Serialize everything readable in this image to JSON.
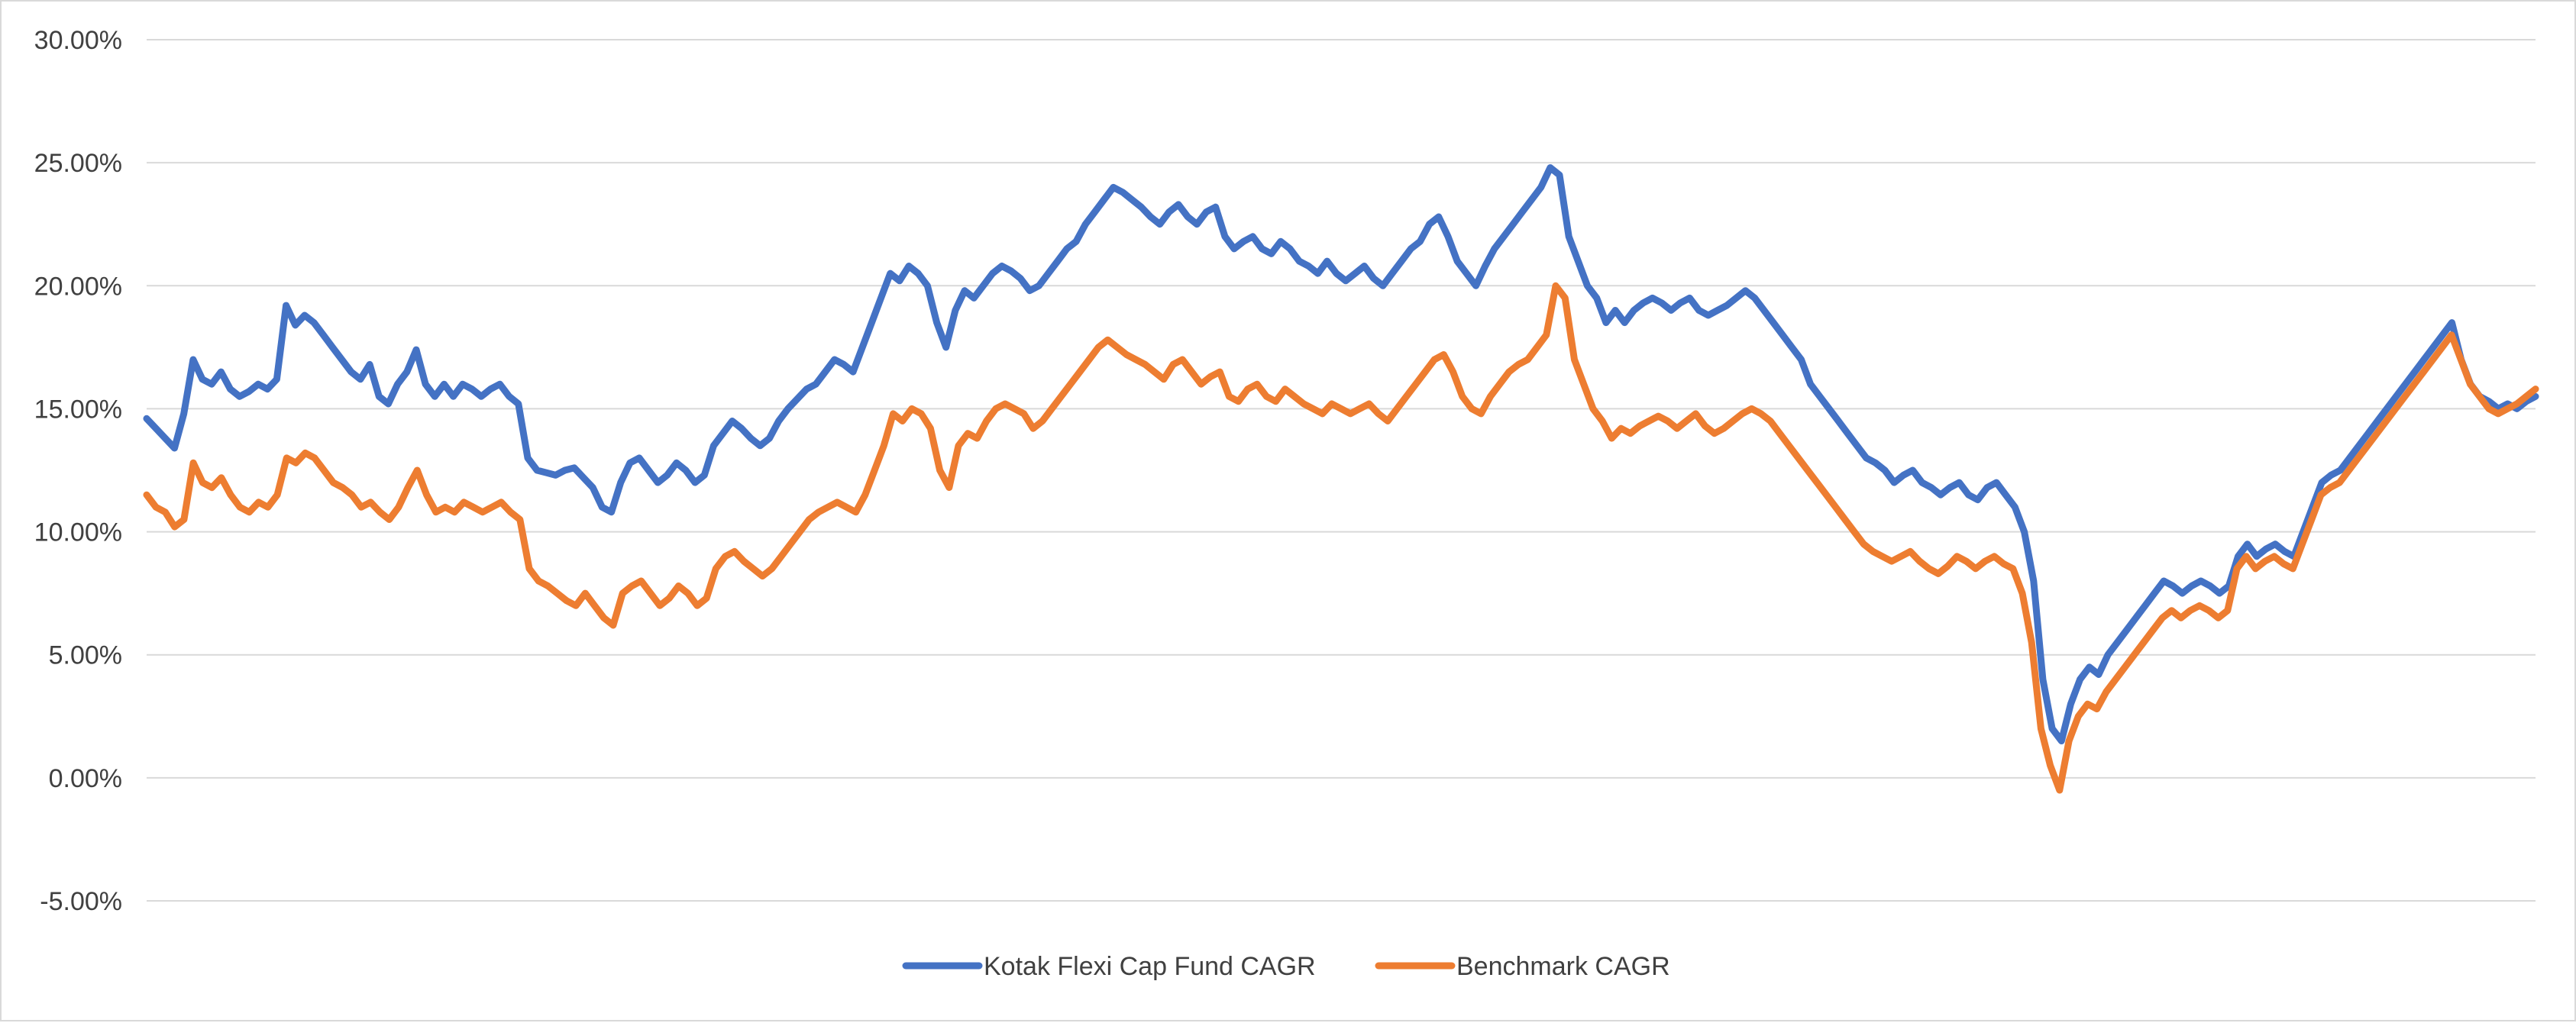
{
  "chart_data": {
    "type": "line",
    "ylim": [
      -5,
      30
    ],
    "y_ticks": [
      30,
      25,
      20,
      15,
      10,
      5,
      0,
      -5
    ],
    "y_tick_labels": [
      "30.00%",
      "25.00%",
      "20.00%",
      "15.00%",
      "10.00%",
      "5.00%",
      "0.00%",
      "-5.00%"
    ],
    "grid": "horizontal",
    "legend_position": "bottom",
    "x_axis_labels": "none",
    "series": [
      {
        "name": "Kotak Flexi Cap Fund CAGR",
        "color": "#4472C4",
        "values": [
          14.6,
          14.2,
          13.8,
          13.4,
          14.8,
          17.0,
          16.2,
          16.0,
          16.5,
          15.8,
          15.5,
          15.7,
          16.0,
          15.8,
          16.2,
          19.2,
          18.4,
          18.8,
          18.5,
          18.0,
          17.5,
          17.0,
          16.5,
          16.2,
          16.8,
          15.5,
          15.2,
          16.0,
          16.5,
          17.4,
          16.0,
          15.5,
          16.0,
          15.5,
          16.0,
          15.8,
          15.5,
          15.8,
          16.0,
          15.5,
          15.2,
          13.0,
          12.5,
          12.4,
          12.3,
          12.5,
          12.6,
          12.2,
          11.8,
          11.0,
          10.8,
          12.0,
          12.8,
          13.0,
          12.5,
          12.0,
          12.3,
          12.8,
          12.5,
          12.0,
          12.3,
          13.5,
          14.0,
          14.5,
          14.2,
          13.8,
          13.5,
          13.8,
          14.5,
          15.0,
          15.4,
          15.8,
          16.0,
          16.5,
          17.0,
          16.8,
          16.5,
          17.5,
          18.5,
          19.5,
          20.5,
          20.2,
          20.8,
          20.5,
          20.0,
          18.5,
          17.5,
          19.0,
          19.8,
          19.5,
          20.0,
          20.5,
          20.8,
          20.6,
          20.3,
          19.8,
          20.0,
          20.5,
          21.0,
          21.5,
          21.8,
          22.5,
          23.0,
          23.5,
          24.0,
          23.8,
          23.5,
          23.2,
          22.8,
          22.5,
          23.0,
          23.3,
          22.8,
          22.5,
          23.0,
          23.2,
          22.0,
          21.5,
          21.8,
          22.0,
          21.5,
          21.3,
          21.8,
          21.5,
          21.0,
          20.8,
          20.5,
          21.0,
          20.5,
          20.2,
          20.5,
          20.8,
          20.3,
          20.0,
          20.5,
          21.0,
          21.5,
          21.8,
          22.5,
          22.8,
          22.0,
          21.0,
          20.5,
          20.0,
          20.8,
          21.5,
          22.0,
          22.5,
          23.0,
          23.5,
          24.0,
          24.8,
          24.5,
          22.0,
          21.0,
          20.0,
          19.5,
          18.5,
          19.0,
          18.5,
          19.0,
          19.3,
          19.5,
          19.3,
          19.0,
          19.3,
          19.5,
          19.0,
          18.8,
          19.0,
          19.2,
          19.5,
          19.8,
          19.5,
          19.0,
          18.5,
          18.0,
          17.5,
          17.0,
          16.0,
          15.5,
          15.0,
          14.5,
          14.0,
          13.5,
          13.0,
          12.8,
          12.5,
          12.0,
          12.3,
          12.5,
          12.0,
          11.8,
          11.5,
          11.8,
          12.0,
          11.5,
          11.3,
          11.8,
          12.0,
          11.5,
          11.0,
          10.0,
          8.0,
          4.0,
          2.0,
          1.5,
          3.0,
          4.0,
          4.5,
          4.2,
          5.0,
          5.5,
          6.0,
          6.5,
          7.0,
          7.5,
          8.0,
          7.8,
          7.5,
          7.8,
          8.0,
          7.8,
          7.5,
          7.8,
          9.0,
          9.5,
          9.0,
          9.3,
          9.5,
          9.2,
          9.0,
          10.0,
          11.0,
          12.0,
          12.3,
          12.5,
          13.0,
          13.5,
          14.0,
          14.5,
          15.0,
          15.5,
          16.0,
          16.5,
          17.0,
          17.5,
          18.0,
          18.5,
          17.0,
          16.0,
          15.5,
          15.3,
          15.0,
          15.2,
          15.0,
          15.3,
          15.5
        ]
      },
      {
        "name": "Benchmark CAGR",
        "color": "#ED7D31",
        "values": [
          11.5,
          11.0,
          10.8,
          10.2,
          10.5,
          12.8,
          12.0,
          11.8,
          12.2,
          11.5,
          11.0,
          10.8,
          11.2,
          11.0,
          11.5,
          13.0,
          12.8,
          13.2,
          13.0,
          12.5,
          12.0,
          11.8,
          11.5,
          11.0,
          11.2,
          10.8,
          10.5,
          11.0,
          11.8,
          12.5,
          11.5,
          10.8,
          11.0,
          10.8,
          11.2,
          11.0,
          10.8,
          11.0,
          11.2,
          10.8,
          10.5,
          8.5,
          8.0,
          7.8,
          7.5,
          7.2,
          7.0,
          7.5,
          7.0,
          6.5,
          6.2,
          7.5,
          7.8,
          8.0,
          7.5,
          7.0,
          7.3,
          7.8,
          7.5,
          7.0,
          7.3,
          8.5,
          9.0,
          9.2,
          8.8,
          8.5,
          8.2,
          8.5,
          9.0,
          9.5,
          10.0,
          10.5,
          10.8,
          11.0,
          11.2,
          11.0,
          10.8,
          11.5,
          12.5,
          13.5,
          14.8,
          14.5,
          15.0,
          14.8,
          14.2,
          12.5,
          11.8,
          13.5,
          14.0,
          13.8,
          14.5,
          15.0,
          15.2,
          15.0,
          14.8,
          14.2,
          14.5,
          15.0,
          15.5,
          16.0,
          16.5,
          17.0,
          17.5,
          17.8,
          17.5,
          17.2,
          17.0,
          16.8,
          16.5,
          16.2,
          16.8,
          17.0,
          16.5,
          16.0,
          16.3,
          16.5,
          15.5,
          15.3,
          15.8,
          16.0,
          15.5,
          15.3,
          15.8,
          15.5,
          15.2,
          15.0,
          14.8,
          15.2,
          15.0,
          14.8,
          15.0,
          15.2,
          14.8,
          14.5,
          15.0,
          15.5,
          16.0,
          16.5,
          17.0,
          17.2,
          16.5,
          15.5,
          15.0,
          14.8,
          15.5,
          16.0,
          16.5,
          16.8,
          17.0,
          17.5,
          18.0,
          20.0,
          19.5,
          17.0,
          16.0,
          15.0,
          14.5,
          13.8,
          14.2,
          14.0,
          14.3,
          14.5,
          14.7,
          14.5,
          14.2,
          14.5,
          14.8,
          14.3,
          14.0,
          14.2,
          14.5,
          14.8,
          15.0,
          14.8,
          14.5,
          14.0,
          13.5,
          13.0,
          12.5,
          12.0,
          11.5,
          11.0,
          10.5,
          10.0,
          9.5,
          9.2,
          9.0,
          8.8,
          9.0,
          9.2,
          8.8,
          8.5,
          8.3,
          8.6,
          9.0,
          8.8,
          8.5,
          8.8,
          9.0,
          8.7,
          8.5,
          7.5,
          5.5,
          2.0,
          0.5,
          -0.5,
          1.5,
          2.5,
          3.0,
          2.8,
          3.5,
          4.0,
          4.5,
          5.0,
          5.5,
          6.0,
          6.5,
          6.8,
          6.5,
          6.8,
          7.0,
          6.8,
          6.5,
          6.8,
          8.5,
          9.0,
          8.5,
          8.8,
          9.0,
          8.7,
          8.5,
          9.5,
          10.5,
          11.5,
          11.8,
          12.0,
          12.5,
          13.0,
          13.5,
          14.0,
          14.5,
          15.0,
          15.5,
          16.0,
          16.5,
          17.0,
          17.5,
          18.0,
          17.0,
          16.0,
          15.5,
          15.0,
          14.8,
          15.0,
          15.2,
          15.5,
          15.8
        ]
      }
    ]
  }
}
